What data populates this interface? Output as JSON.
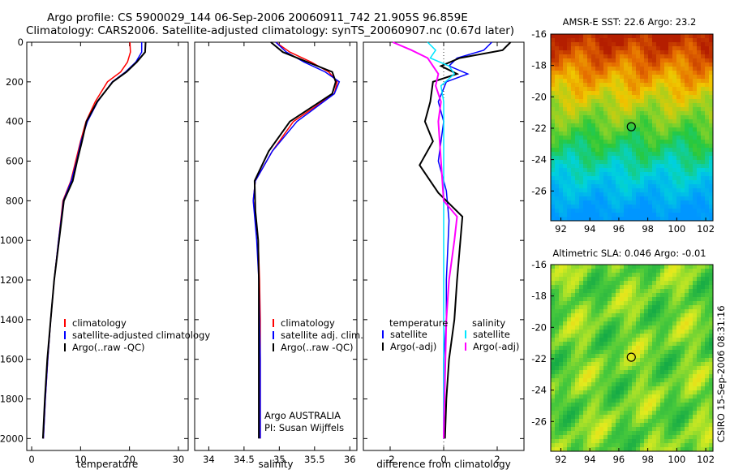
{
  "title": {
    "line1": "Argo profile: CS 5900029_144 06-Sep-2006 20060911_742 21.905S 96.859E",
    "line2": "Climatology: CARS2006. Satellite-adjusted climatology: synTS_20060907.nc (0.67d later)"
  },
  "side_label": "CSIRO 15-Sep-2006 08:31:16",
  "colors": {
    "red": "#ff0000",
    "blue": "#0000ff",
    "black": "#000000",
    "cyan": "#00e5ff",
    "magenta": "#ff00ff"
  },
  "chart_data": [
    {
      "type": "line",
      "name": "temperature-panel",
      "xlabel": "temperature",
      "xlim": [
        -1,
        32
      ],
      "ylim": [
        0,
        2060
      ],
      "xticks": [
        "0",
        "10",
        "20",
        "30"
      ],
      "xtick_values": [
        0,
        10,
        20,
        30
      ],
      "yticks": [
        "0",
        "200",
        "400",
        "600",
        "800",
        "1000",
        "1200",
        "1400",
        "1600",
        "1800",
        "2000"
      ],
      "ytick_values": [
        0,
        200,
        400,
        600,
        800,
        1000,
        1200,
        1400,
        1600,
        1800,
        2000
      ],
      "legend": [
        "climatology",
        "satellite-adjusted climatology",
        "Argo(..raw -QC)"
      ],
      "series": [
        {
          "name": "climatology",
          "color": "#ff0000",
          "x": [
            20.1,
            20.2,
            19.6,
            18.2,
            15.5,
            13.0,
            11.1,
            10.0,
            9.0,
            8.0,
            6.4,
            5.5,
            4.6,
            3.9,
            3.3,
            2.8,
            2.4
          ],
          "y": [
            0,
            50,
            100,
            150,
            200,
            300,
            400,
            500,
            600,
            700,
            800,
            1000,
            1200,
            1400,
            1600,
            1800,
            2000
          ]
        },
        {
          "name": "satellite-adjusted climatology",
          "color": "#0000ff",
          "x": [
            22.5,
            22.5,
            21.3,
            19.2,
            16.5,
            13.5,
            11.4,
            10.1,
            9.2,
            8.1,
            6.5,
            5.5,
            4.6,
            3.9,
            3.3,
            2.8,
            2.4
          ],
          "y": [
            0,
            50,
            100,
            150,
            200,
            300,
            400,
            500,
            600,
            700,
            800,
            1000,
            1200,
            1400,
            1600,
            1800,
            2000
          ]
        },
        {
          "name": "Argo(..raw -QC)",
          "color": "#000000",
          "x": [
            23.3,
            23.2,
            21.5,
            19.4,
            16.6,
            13.4,
            11.2,
            10.3,
            9.3,
            8.4,
            6.6,
            5.6,
            4.6,
            3.9,
            3.2,
            2.7,
            2.3
          ],
          "y": [
            0,
            50,
            100,
            150,
            200,
            300,
            400,
            500,
            600,
            700,
            800,
            1000,
            1200,
            1400,
            1600,
            1800,
            2000
          ]
        }
      ]
    },
    {
      "type": "line",
      "name": "salinity-panel",
      "xlabel": "salinity",
      "xlim": [
        33.8,
        36.1
      ],
      "ylim": [
        0,
        2060
      ],
      "xticks": [
        "34",
        "34.5",
        "35",
        "35.5",
        "36"
      ],
      "xtick_values": [
        34,
        34.5,
        35,
        35.5,
        36
      ],
      "legend": [
        "climatology",
        "satellite adj. clim.",
        "Argo(..raw -QC)"
      ],
      "annotation": [
        "Argo AUSTRALIA",
        "PI: Susan Wijffels"
      ],
      "series": [
        {
          "name": "climatology",
          "color": "#ff0000",
          "x": [
            34.95,
            35.15,
            35.45,
            35.7,
            35.82,
            35.78,
            35.2,
            34.9,
            34.66,
            34.63,
            34.7,
            34.72,
            34.73,
            34.73,
            34.73,
            34.73
          ],
          "y": [
            0,
            50,
            100,
            150,
            200,
            260,
            400,
            550,
            700,
            800,
            1000,
            1200,
            1400,
            1600,
            1800,
            2000
          ]
        },
        {
          "name": "satellite adj. clim.",
          "color": "#0000ff",
          "x": [
            34.95,
            35.1,
            35.35,
            35.65,
            35.85,
            35.78,
            35.25,
            34.9,
            34.66,
            34.63,
            34.68,
            34.71,
            34.72,
            34.73,
            34.73,
            34.73
          ],
          "y": [
            0,
            50,
            100,
            150,
            200,
            260,
            400,
            550,
            700,
            800,
            1000,
            1200,
            1400,
            1600,
            1800,
            2000
          ]
        },
        {
          "name": "Argo(..raw -QC)",
          "color": "#000000",
          "x": [
            34.88,
            35.05,
            35.4,
            35.75,
            35.8,
            35.75,
            35.15,
            34.85,
            34.65,
            34.66,
            34.7,
            34.71,
            34.71,
            34.71,
            34.71,
            34.71
          ],
          "y": [
            0,
            50,
            100,
            150,
            200,
            260,
            400,
            550,
            700,
            850,
            1000,
            1200,
            1400,
            1600,
            1800,
            2000
          ]
        }
      ]
    },
    {
      "type": "line",
      "name": "difference-panel",
      "xlabel": "difference from climatology",
      "xlim": [
        -3,
        3
      ],
      "ylim": [
        0,
        2060
      ],
      "xticks": [
        "-2",
        "0",
        "2"
      ],
      "xtick_values": [
        -2,
        0,
        2
      ],
      "legend": [
        "temperature",
        "satellite",
        "Argo(-adj)",
        "salinity",
        "satellite",
        "Argo(-adj)"
      ],
      "series": [
        {
          "name": "temperature satellite",
          "color": "#0000ff",
          "x": [
            1.8,
            1.5,
            0.5,
            0.2,
            0.9,
            0.1,
            -0.2,
            0.0,
            -0.1,
            -0.2,
            0.1,
            0.2,
            0.1,
            0.1,
            0.0,
            0.0,
            0.0
          ],
          "y": [
            0,
            40,
            80,
            120,
            160,
            200,
            300,
            400,
            500,
            600,
            750,
            900,
            1200,
            1400,
            1600,
            1800,
            2000
          ]
        },
        {
          "name": "temperature Argo(-adj)",
          "color": "#000000",
          "x": [
            2.5,
            2.2,
            0.6,
            -0.1,
            0.5,
            -0.4,
            -0.5,
            -0.7,
            -0.4,
            -0.9,
            -0.2,
            0.7,
            0.5,
            0.4,
            0.2,
            0.1,
            0.05
          ],
          "y": [
            0,
            40,
            80,
            120,
            160,
            200,
            300,
            400,
            500,
            620,
            760,
            880,
            1200,
            1400,
            1600,
            1800,
            2000
          ]
        },
        {
          "name": "salinity satellite",
          "color": "#00e5ff",
          "x": [
            -0.6,
            -0.3,
            -0.5,
            0.2,
            0.4,
            -0.1,
            0.0,
            0.0,
            0.0,
            0.0,
            0.0,
            0.0,
            0.0,
            0.0,
            0.0,
            0.0
          ],
          "y": [
            0,
            40,
            80,
            120,
            160,
            220,
            300,
            400,
            600,
            800,
            1000,
            1200,
            1400,
            1600,
            1800,
            2000
          ]
        },
        {
          "name": "salinity Argo(-adj)",
          "color": "#ff00ff",
          "x": [
            -1.9,
            -1.2,
            -0.6,
            -0.4,
            -0.2,
            -0.3,
            -0.1,
            -0.2,
            -0.1,
            0.0,
            0.5,
            0.4,
            0.2,
            0.1,
            0.05,
            0.0
          ],
          "y": [
            0,
            40,
            80,
            120,
            160,
            220,
            300,
            400,
            600,
            800,
            880,
            1000,
            1200,
            1400,
            1700,
            2000
          ]
        }
      ]
    },
    {
      "type": "heatmap",
      "name": "sst-map",
      "title": "AMSR-E SST: 22.6  Argo: 23.2",
      "xlim": [
        91.3,
        102.5
      ],
      "ylim": [
        -27.9,
        -16
      ],
      "xticks": [
        "92",
        "94",
        "96",
        "98",
        "100",
        "102"
      ],
      "xtick_values": [
        92,
        94,
        96,
        98,
        100,
        102
      ],
      "yticks": [
        "-16",
        "-18",
        "-20",
        "-22",
        "-24",
        "-26"
      ],
      "ytick_values": [
        -16,
        -18,
        -20,
        -22,
        -24,
        -26
      ],
      "marker": {
        "lon": 96.859,
        "lat": -21.905
      }
    },
    {
      "type": "heatmap",
      "name": "sla-map",
      "title": "Altimetric SLA: 0.046  Argo: -0.01",
      "xlim": [
        91.3,
        102.5
      ],
      "ylim": [
        -27.9,
        -16
      ],
      "xticks": [
        "92",
        "94",
        "96",
        "98",
        "100",
        "102"
      ],
      "xtick_values": [
        92,
        94,
        96,
        98,
        100,
        102
      ],
      "yticks": [
        "-16",
        "-18",
        "-20",
        "-22",
        "-24",
        "-26"
      ],
      "ytick_values": [
        -16,
        -18,
        -20,
        -22,
        -24,
        -26
      ],
      "marker": {
        "lon": 96.859,
        "lat": -21.905
      }
    }
  ]
}
